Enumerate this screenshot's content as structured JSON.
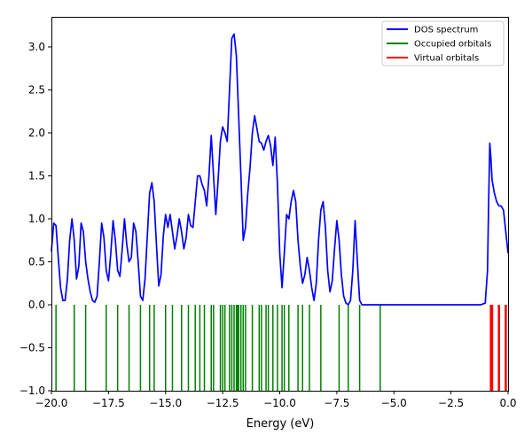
{
  "chart_data": {
    "type": "line",
    "xlabel": "Energy (eV)",
    "ylabel": "",
    "xlim": [
      -20,
      0
    ],
    "ylim": [
      -1,
      3.35
    ],
    "x_ticks": [
      -20,
      -17.5,
      -15,
      -12.5,
      -10,
      -7.5,
      -5,
      -2.5,
      0
    ],
    "x_tick_labels": [
      "−20.0",
      "−17.5",
      "−15.0",
      "−12.5",
      "−10.0",
      "−7.5",
      "−5.0",
      "−2.5",
      "0.0"
    ],
    "y_ticks": [
      -1,
      -0.5,
      0,
      0.5,
      1,
      1.5,
      2,
      2.5,
      3
    ],
    "y_tick_labels": [
      "−1.0",
      "−0.5",
      "0.0",
      "0.5",
      "1.0",
      "1.5",
      "2.0",
      "2.5",
      "3.0"
    ],
    "grid": false,
    "legend_position": "top-right",
    "series": [
      {
        "name": "DOS spectrum",
        "color": "#0000ff",
        "points": [
          [
            -20.0,
            0.62
          ],
          [
            -19.9,
            0.95
          ],
          [
            -19.8,
            0.92
          ],
          [
            -19.7,
            0.55
          ],
          [
            -19.6,
            0.2
          ],
          [
            -19.5,
            0.05
          ],
          [
            -19.4,
            0.05
          ],
          [
            -19.3,
            0.3
          ],
          [
            -19.2,
            0.75
          ],
          [
            -19.1,
            1.0
          ],
          [
            -19.0,
            0.75
          ],
          [
            -18.9,
            0.3
          ],
          [
            -18.8,
            0.45
          ],
          [
            -18.7,
            0.95
          ],
          [
            -18.6,
            0.85
          ],
          [
            -18.5,
            0.5
          ],
          [
            -18.4,
            0.3
          ],
          [
            -18.3,
            0.15
          ],
          [
            -18.2,
            0.05
          ],
          [
            -18.1,
            0.03
          ],
          [
            -18.0,
            0.1
          ],
          [
            -17.9,
            0.5
          ],
          [
            -17.8,
            0.95
          ],
          [
            -17.7,
            0.78
          ],
          [
            -17.6,
            0.4
          ],
          [
            -17.5,
            0.28
          ],
          [
            -17.4,
            0.6
          ],
          [
            -17.3,
            0.98
          ],
          [
            -17.2,
            0.75
          ],
          [
            -17.1,
            0.4
          ],
          [
            -17.0,
            0.33
          ],
          [
            -16.9,
            0.65
          ],
          [
            -16.8,
            1.0
          ],
          [
            -16.7,
            0.7
          ],
          [
            -16.6,
            0.5
          ],
          [
            -16.5,
            0.55
          ],
          [
            -16.4,
            0.95
          ],
          [
            -16.3,
            0.85
          ],
          [
            -16.2,
            0.5
          ],
          [
            -16.1,
            0.1
          ],
          [
            -16.0,
            0.05
          ],
          [
            -15.9,
            0.3
          ],
          [
            -15.8,
            0.8
          ],
          [
            -15.7,
            1.3
          ],
          [
            -15.6,
            1.42
          ],
          [
            -15.5,
            1.2
          ],
          [
            -15.4,
            0.7
          ],
          [
            -15.3,
            0.22
          ],
          [
            -15.2,
            0.35
          ],
          [
            -15.1,
            0.8
          ],
          [
            -15.0,
            1.05
          ],
          [
            -14.9,
            0.9
          ],
          [
            -14.8,
            1.05
          ],
          [
            -14.7,
            0.85
          ],
          [
            -14.6,
            0.65
          ],
          [
            -14.5,
            0.8
          ],
          [
            -14.4,
            1.0
          ],
          [
            -14.3,
            0.85
          ],
          [
            -14.2,
            0.65
          ],
          [
            -14.1,
            0.78
          ],
          [
            -14.0,
            1.05
          ],
          [
            -13.9,
            0.92
          ],
          [
            -13.8,
            0.9
          ],
          [
            -13.7,
            1.2
          ],
          [
            -13.6,
            1.5
          ],
          [
            -13.5,
            1.5
          ],
          [
            -13.4,
            1.4
          ],
          [
            -13.3,
            1.33
          ],
          [
            -13.2,
            1.15
          ],
          [
            -13.1,
            1.5
          ],
          [
            -13.0,
            1.97
          ],
          [
            -12.9,
            1.5
          ],
          [
            -12.8,
            1.05
          ],
          [
            -12.7,
            1.45
          ],
          [
            -12.6,
            1.9
          ],
          [
            -12.5,
            2.07
          ],
          [
            -12.4,
            2.0
          ],
          [
            -12.3,
            1.9
          ],
          [
            -12.2,
            2.5
          ],
          [
            -12.1,
            3.1
          ],
          [
            -12.0,
            3.15
          ],
          [
            -11.9,
            2.9
          ],
          [
            -11.8,
            2.2
          ],
          [
            -11.7,
            1.5
          ],
          [
            -11.6,
            0.75
          ],
          [
            -11.5,
            0.9
          ],
          [
            -11.4,
            1.3
          ],
          [
            -11.3,
            1.6
          ],
          [
            -11.2,
            2.0
          ],
          [
            -11.1,
            2.2
          ],
          [
            -11.0,
            2.05
          ],
          [
            -10.9,
            1.9
          ],
          [
            -10.8,
            1.88
          ],
          [
            -10.7,
            1.8
          ],
          [
            -10.6,
            1.9
          ],
          [
            -10.5,
            1.97
          ],
          [
            -10.4,
            1.85
          ],
          [
            -10.3,
            1.62
          ],
          [
            -10.2,
            1.95
          ],
          [
            -10.1,
            1.4
          ],
          [
            -10.0,
            0.6
          ],
          [
            -9.9,
            0.2
          ],
          [
            -9.8,
            0.6
          ],
          [
            -9.7,
            1.05
          ],
          [
            -9.6,
            1.0
          ],
          [
            -9.5,
            1.2
          ],
          [
            -9.4,
            1.33
          ],
          [
            -9.3,
            1.2
          ],
          [
            -9.2,
            0.75
          ],
          [
            -9.1,
            0.45
          ],
          [
            -9.0,
            0.25
          ],
          [
            -8.9,
            0.35
          ],
          [
            -8.8,
            0.55
          ],
          [
            -8.7,
            0.4
          ],
          [
            -8.6,
            0.2
          ],
          [
            -8.5,
            0.05
          ],
          [
            -8.4,
            0.25
          ],
          [
            -8.3,
            0.75
          ],
          [
            -8.2,
            1.1
          ],
          [
            -8.1,
            1.2
          ],
          [
            -8.0,
            0.9
          ],
          [
            -7.9,
            0.4
          ],
          [
            -7.8,
            0.15
          ],
          [
            -7.7,
            0.28
          ],
          [
            -7.6,
            0.65
          ],
          [
            -7.5,
            0.98
          ],
          [
            -7.4,
            0.75
          ],
          [
            -7.3,
            0.35
          ],
          [
            -7.2,
            0.1
          ],
          [
            -7.1,
            0.02
          ],
          [
            -7.0,
            0.0
          ],
          [
            -6.9,
            0.05
          ],
          [
            -6.8,
            0.4
          ],
          [
            -6.7,
            0.98
          ],
          [
            -6.6,
            0.5
          ],
          [
            -6.5,
            0.05
          ],
          [
            -6.4,
            0.0
          ],
          [
            -6.2,
            0.0
          ],
          [
            -6.0,
            0.0
          ],
          [
            -5.0,
            0.0
          ],
          [
            -2.5,
            0.0
          ],
          [
            -1.2,
            0.0
          ],
          [
            -1.0,
            0.02
          ],
          [
            -0.9,
            0.4
          ],
          [
            -0.85,
            1.2
          ],
          [
            -0.8,
            1.88
          ],
          [
            -0.75,
            1.7
          ],
          [
            -0.7,
            1.45
          ],
          [
            -0.6,
            1.3
          ],
          [
            -0.5,
            1.2
          ],
          [
            -0.4,
            1.15
          ],
          [
            -0.3,
            1.15
          ],
          [
            -0.2,
            1.1
          ],
          [
            -0.1,
            0.85
          ],
          [
            0.0,
            0.6
          ]
        ]
      },
      {
        "name": "Occupied orbitals",
        "color": "#008000",
        "x": [
          -19.8,
          -19.0,
          -18.5,
          -17.6,
          -17.1,
          -16.6,
          -16.1,
          -15.7,
          -15.5,
          -15.0,
          -14.7,
          -14.3,
          -14.0,
          -13.7,
          -13.5,
          -13.3,
          -13.0,
          -12.9,
          -12.6,
          -12.5,
          -12.4,
          -12.2,
          -12.1,
          -12.0,
          -11.9,
          -11.85,
          -11.8,
          -11.7,
          -11.6,
          -11.5,
          -11.2,
          -10.9,
          -10.8,
          -10.6,
          -10.5,
          -10.3,
          -10.1,
          -9.9,
          -9.8,
          -9.6,
          -9.2,
          -9.0,
          -8.7,
          -8.2,
          -7.4,
          -7.0,
          -6.5,
          -5.6
        ],
        "ymin": -1,
        "ymax": 0
      },
      {
        "name": "Virtual orbitals",
        "color": "#ff0000",
        "x": [
          -0.75,
          -0.7,
          -0.4,
          -0.1
        ],
        "ymin": -1,
        "ymax": 0
      }
    ]
  }
}
